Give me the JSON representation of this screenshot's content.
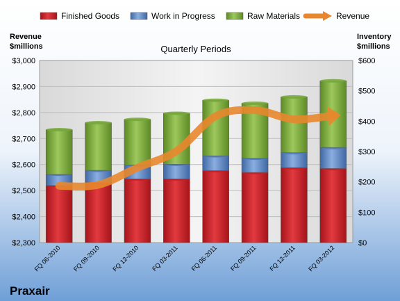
{
  "chart_data": {
    "type": "bar",
    "title": "Quarterly Periods",
    "company": "Praxair",
    "left_axis_label": "Revenue\n$millions",
    "right_axis_label": "Inventory\n$millions",
    "categories": [
      "FQ 06-2010",
      "FQ 09-2010",
      "FQ 12-2010",
      "FQ 03-2011",
      "FQ 06-2011",
      "FQ 09-2011",
      "FQ 12-2011",
      "FQ 03-2012"
    ],
    "left_axis": {
      "min": 2300,
      "max": 3000,
      "ticks": [
        "$2,300",
        "$2,400",
        "$2,500",
        "$2,600",
        "$2,700",
        "$2,800",
        "$2,900",
        "$3,000"
      ]
    },
    "right_axis": {
      "min": 0,
      "max": 600,
      "ticks": [
        "$0",
        "$100",
        "$200",
        "$300",
        "$400",
        "$500",
        "$600"
      ]
    },
    "legend_position": "top",
    "series": [
      {
        "name": "Finished Goods",
        "axis": "right",
        "color": "#c41e24",
        "values": [
          188,
          198,
          210,
          210,
          237,
          231,
          247,
          244
        ]
      },
      {
        "name": "Work in Progress",
        "axis": "right",
        "color": "#4e79b8",
        "values": [
          37,
          40,
          46,
          48,
          49,
          47,
          49,
          69
        ]
      },
      {
        "name": "Raw Materials",
        "axis": "right",
        "color": "#76a838",
        "values": [
          147,
          157,
          150,
          168,
          183,
          181,
          184,
          220
        ]
      },
      {
        "name": "Revenue",
        "axis": "left",
        "type": "line",
        "color": "#e8872e",
        "values": [
          2518,
          2522,
          2588,
          2652,
          2786,
          2809,
          2774,
          2788
        ]
      }
    ]
  }
}
